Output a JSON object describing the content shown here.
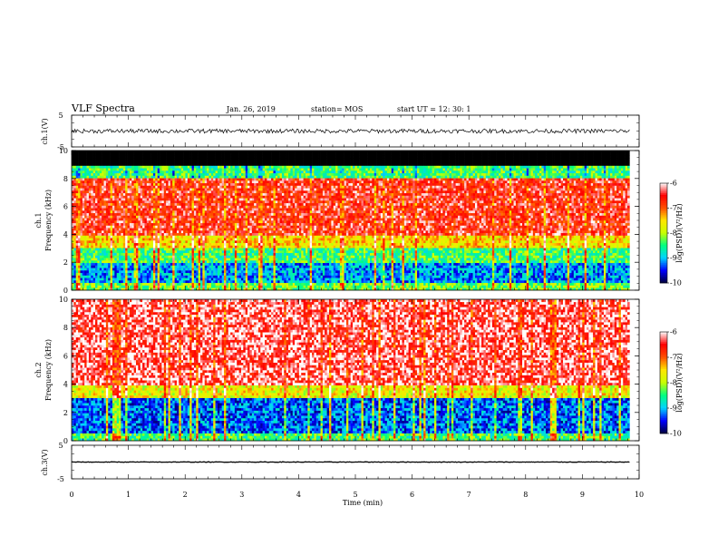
{
  "header": {
    "title": "VLF Spectra",
    "date": "Jan. 26, 2019",
    "station": "station= MOS",
    "start_ut": "start  UT =  12: 30: 1"
  },
  "colors": {
    "spectrogram_scale": [
      "#00003c",
      "#0000ff",
      "#00d2ff",
      "#00ff80",
      "#c8ff00",
      "#ffe600",
      "#ff5000",
      "#ff0000",
      "#ffffff"
    ]
  },
  "chart_data": [
    {
      "type": "line",
      "name": "ch1-waveform",
      "ylabel": "ch.1(V)",
      "ylim": [
        -5,
        5
      ],
      "yticks": [
        "5",
        "-5"
      ],
      "value": 0
    },
    {
      "type": "heatmap",
      "name": "ch1-spectrogram",
      "ylabel": "ch.1\nFrequency (kHz)",
      "ylim": [
        0,
        10
      ],
      "yticks": [
        "0",
        "2",
        "4",
        "6",
        "8",
        "10"
      ],
      "xlim": [
        0,
        10
      ],
      "data_end_min": 9.83,
      "black_band_khz": [
        9.0,
        10.0
      ],
      "bands": [
        {
          "from": 0.0,
          "to": 0.5,
          "level": 0.45
        },
        {
          "from": 0.5,
          "to": 2.0,
          "level": 0.22
        },
        {
          "from": 2.0,
          "to": 3.0,
          "level": 0.4
        },
        {
          "from": 3.0,
          "to": 4.0,
          "level": 0.62
        },
        {
          "from": 4.0,
          "to": 8.0,
          "level": 0.86
        },
        {
          "from": 8.0,
          "to": 9.0,
          "level": 0.4
        }
      ],
      "colorbar": {
        "label": "log(PSD)(V²/Hz)",
        "range": [
          -10,
          -6
        ],
        "ticks": [
          "-6",
          "-7",
          "-8",
          "-9",
          "-10"
        ]
      }
    },
    {
      "type": "heatmap",
      "name": "ch2-spectrogram",
      "ylabel": "ch.2\nFrequency (kHz)",
      "ylim": [
        0,
        10
      ],
      "yticks": [
        "0",
        "2",
        "4",
        "6",
        "8",
        "10"
      ],
      "xlim": [
        0,
        10
      ],
      "data_end_min": 9.83,
      "bands": [
        {
          "from": 0.0,
          "to": 0.5,
          "level": 0.4
        },
        {
          "from": 0.5,
          "to": 3.0,
          "level": 0.18
        },
        {
          "from": 3.0,
          "to": 4.0,
          "level": 0.58
        },
        {
          "from": 4.0,
          "to": 10.0,
          "level": 0.93
        }
      ],
      "colorbar": {
        "label": "log(PSD)(V²/Hz)",
        "range": [
          -10,
          -6
        ],
        "ticks": [
          "-6",
          "-7",
          "-8",
          "-9",
          "-10"
        ]
      }
    },
    {
      "type": "line",
      "name": "ch3-waveform",
      "ylabel": "ch.3(V)",
      "ylim": [
        -5,
        5
      ],
      "yticks": [
        "5",
        "-5"
      ],
      "value": 0
    }
  ],
  "xaxis": {
    "label": "Time (min)",
    "ticks": [
      "0",
      "1",
      "2",
      "3",
      "4",
      "5",
      "6",
      "7",
      "8",
      "9",
      "10"
    ],
    "range": [
      0,
      10
    ]
  }
}
